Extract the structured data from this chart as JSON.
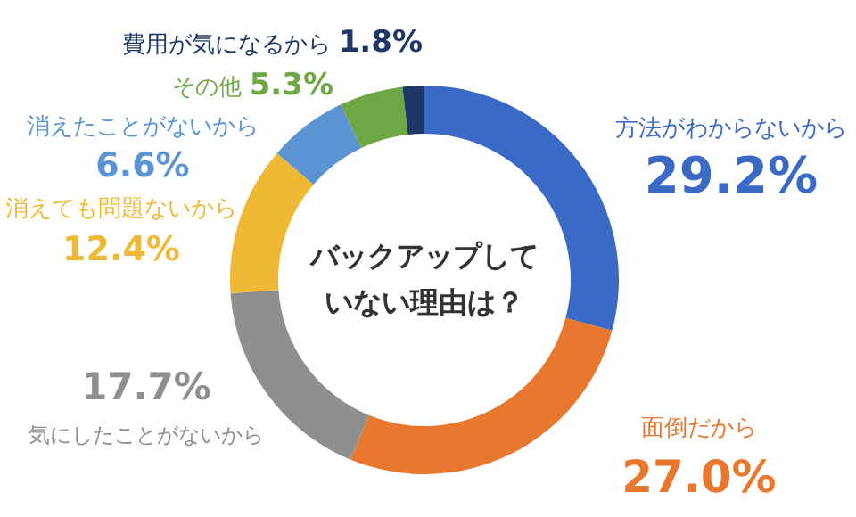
{
  "chart_data": {
    "type": "donut",
    "title": "バックアップしていない理由は？",
    "categories": [
      "方法がわからないから",
      "面倒だから",
      "気にしたことがないから",
      "消えても問題ないから",
      "消えたことがないから",
      "その他",
      "費用が気になるから"
    ],
    "values": [
      29.2,
      27.0,
      17.7,
      12.4,
      6.6,
      5.3,
      1.8
    ],
    "value_labels": [
      "29.2%",
      "27.0%",
      "17.7%",
      "12.4%",
      "6.6%",
      "5.3%",
      "1.8%"
    ],
    "colors": [
      "#3a69c6",
      "#e8782f",
      "#8f8f8f",
      "#f0b935",
      "#5b93d3",
      "#6ea845",
      "#1f3766"
    ],
    "data_labels": true
  }
}
